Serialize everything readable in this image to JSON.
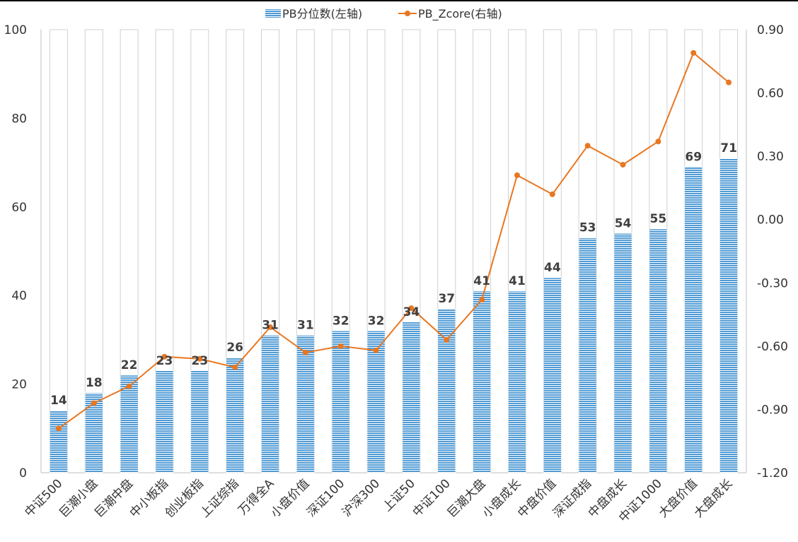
{
  "chart_data": {
    "type": "bar+line",
    "categories": [
      "中证500",
      "巨潮小盘",
      "巨潮中盘",
      "中小板指",
      "创业板指",
      "上证综指",
      "万得全A",
      "小盘价值",
      "深证100",
      "沪深300",
      "上证50",
      "中证100",
      "巨潮大盘",
      "小盘成长",
      "中盘价值",
      "深证成指",
      "中盘成长",
      "中证1000",
      "大盘价值",
      "大盘成长"
    ],
    "series": [
      {
        "name": "PB分位数(左轴)",
        "type": "bar",
        "axis": "left",
        "values": [
          14,
          18,
          22,
          23,
          23,
          26,
          31,
          31,
          32,
          32,
          34,
          37,
          41,
          41,
          44,
          53,
          54,
          55,
          69,
          71
        ],
        "labels": [
          "14",
          "18",
          "22",
          "23",
          "23",
          "26",
          "31",
          "31",
          "32",
          "32",
          "34",
          "37",
          "41",
          "41",
          "44",
          "53",
          "54",
          "55",
          "69",
          "71"
        ],
        "color": "#4f9ad4"
      },
      {
        "name": "PB_Zcore(右轴)",
        "type": "line",
        "axis": "right",
        "values": [
          -0.99,
          -0.87,
          -0.79,
          -0.65,
          -0.66,
          -0.7,
          -0.51,
          -0.63,
          -0.6,
          -0.62,
          -0.42,
          -0.57,
          -0.38,
          0.21,
          0.12,
          0.35,
          0.26,
          0.37,
          0.79,
          0.65
        ],
        "color": "#e87722"
      }
    ],
    "y_left": {
      "min": 0,
      "max": 100,
      "ticks": [
        "0",
        "20",
        "40",
        "60",
        "80",
        "100"
      ]
    },
    "y_right": {
      "min": -1.2,
      "max": 0.9,
      "ticks": [
        "-1.20",
        "-0.90",
        "-0.60",
        "-0.30",
        "0.00",
        "0.30",
        "0.60",
        "0.90"
      ]
    },
    "legend": {
      "placement": "top-center",
      "items": [
        "PB分位数(左轴)",
        "PB_Zcore(右轴)"
      ]
    },
    "grid": false,
    "title": "",
    "xlabel": "",
    "ylabel": ""
  }
}
